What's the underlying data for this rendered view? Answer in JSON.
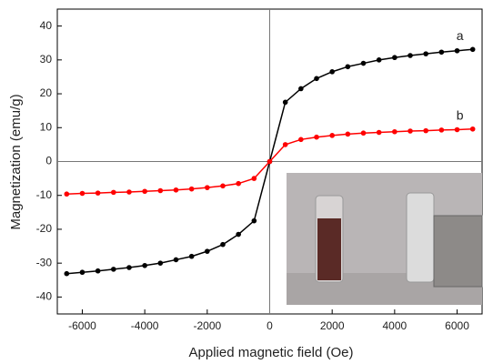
{
  "chart_data": {
    "type": "line",
    "x_label": "Applied magnetic field (Oe)",
    "y_label": "Magnetization (emu/g)",
    "x": [
      -6500,
      -6000,
      -5500,
      -5000,
      -4500,
      -4000,
      -3500,
      -3000,
      -2500,
      -2000,
      -1500,
      -1000,
      -500,
      0,
      500,
      1000,
      1500,
      2000,
      2500,
      3000,
      3500,
      4000,
      4500,
      5000,
      5500,
      6000,
      6500
    ],
    "series": [
      {
        "name": "a",
        "color": "#000000",
        "values": [
          -33.1,
          -32.7,
          -32.3,
          -31.8,
          -31.3,
          -30.7,
          -30,
          -29,
          -28,
          -26.5,
          -24.5,
          -21.5,
          -17.5,
          0,
          17.5,
          21.5,
          24.5,
          26.5,
          28,
          29,
          30,
          30.7,
          31.3,
          31.8,
          32.3,
          32.7,
          33.1
        ]
      },
      {
        "name": "b",
        "color": "#ff0000",
        "values": [
          -9.6,
          -9.4,
          -9.3,
          -9.1,
          -9,
          -8.8,
          -8.6,
          -8.4,
          -8.1,
          -7.7,
          -7.2,
          -6.5,
          -5,
          0,
          5,
          6.5,
          7.2,
          7.7,
          8.1,
          8.4,
          8.6,
          8.8,
          9,
          9.1,
          9.3,
          9.4,
          9.6
        ]
      }
    ],
    "xlim": [
      -6800,
      6800
    ],
    "xticks": [
      -6000,
      -4000,
      -2000,
      0,
      2000,
      4000,
      6000
    ],
    "ylim": [
      -45,
      45
    ],
    "yticks": [
      -40,
      -30,
      -20,
      -10,
      0,
      10,
      20,
      30,
      40
    ]
  }
}
